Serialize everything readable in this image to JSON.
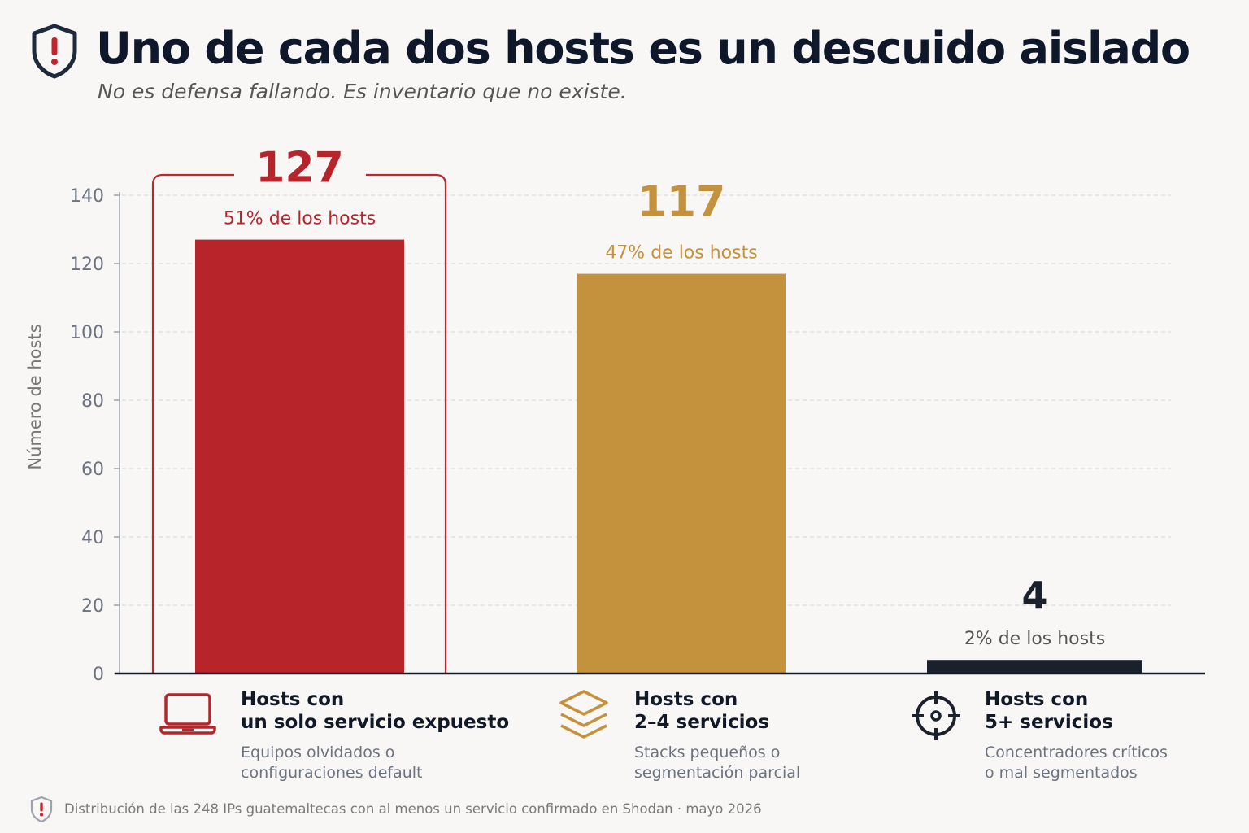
{
  "header": {
    "title": "Uno de cada dos hosts es un descuido aislado",
    "subtitle": "No es defensa fallando. Es inventario que no existe.",
    "icon": "shield-alert-icon"
  },
  "chart_data": {
    "type": "bar",
    "ylabel": "Número de hosts",
    "ylim": [
      0,
      140
    ],
    "yticks": [
      0,
      20,
      40,
      60,
      80,
      100,
      120,
      140
    ],
    "grid": true,
    "highlight_category": 0,
    "categories": [
      "Hosts con un solo servicio expuesto",
      "Hosts con 2–4 servicios",
      "Hosts con 5+ servicios"
    ],
    "values": [
      127,
      117,
      4
    ],
    "value_labels": [
      "127",
      "117",
      "4"
    ],
    "percent_labels": [
      "51% de los hosts",
      "47% de los hosts",
      "2% de los hosts"
    ],
    "colors": [
      "#b7252a",
      "#c4923d",
      "#1a202c"
    ]
  },
  "categories": [
    {
      "line1": "Hosts con",
      "line2": "un solo servicio expuesto",
      "desc1": "Equipos olvidados o",
      "desc2": "configuraciones default",
      "icon": "laptop-icon",
      "color": "#b7252a"
    },
    {
      "line1": "Hosts con",
      "line2": "2–4 servicios",
      "desc1": "Stacks pequeños o",
      "desc2": "segmentación parcial",
      "icon": "layers-icon",
      "color": "#c4923d"
    },
    {
      "line1": "Hosts con",
      "line2": "5+ servicios",
      "desc1": "Concentradores críticos",
      "desc2": "o mal segmentados",
      "icon": "crosshair-icon",
      "color": "#1a202c"
    }
  ],
  "footer": {
    "text": "Distribución de las 248 IPs guatemaltecas con al menos un servicio confirmado en Shodan · mayo 2026",
    "icon": "shield-alert-icon"
  }
}
